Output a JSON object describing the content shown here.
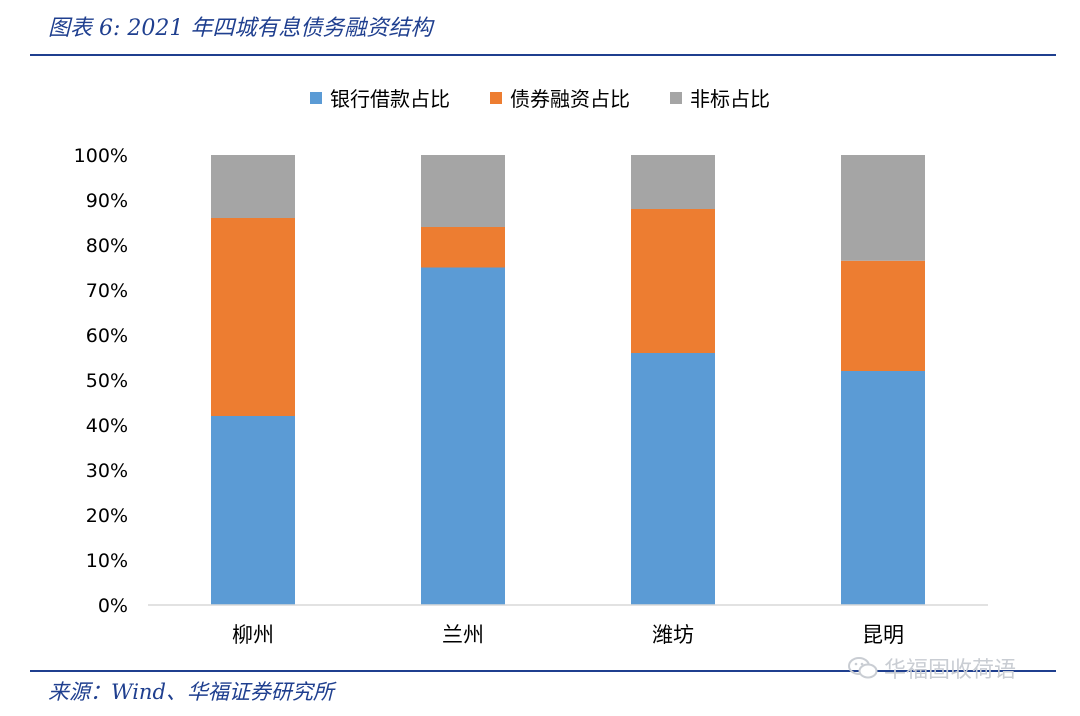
{
  "figure": {
    "title": "图表 6:  2021 年四城有息债务融资结构",
    "source": "来源：Wind、华福证券研究所",
    "watermark": "华福固收荷语",
    "watermark_icon": "wechat-icon"
  },
  "chart_data": {
    "type": "bar",
    "stacked": true,
    "categories": [
      "柳州",
      "兰州",
      "潍坊",
      "昆明"
    ],
    "series": [
      {
        "name": "银行借款占比",
        "color": "#5b9bd5",
        "values": [
          42,
          75,
          56,
          52
        ]
      },
      {
        "name": "债券融资占比",
        "color": "#ed7d31",
        "values": [
          44,
          9,
          32,
          24.5
        ]
      },
      {
        "name": "非标占比",
        "color": "#a5a5a5",
        "values": [
          14,
          16,
          12,
          23.5
        ]
      }
    ],
    "yticks": [
      "0%",
      "10%",
      "20%",
      "30%",
      "40%",
      "50%",
      "60%",
      "70%",
      "80%",
      "90%",
      "100%"
    ],
    "ylim": [
      0,
      100
    ],
    "grid": false,
    "legend": "top-center"
  }
}
